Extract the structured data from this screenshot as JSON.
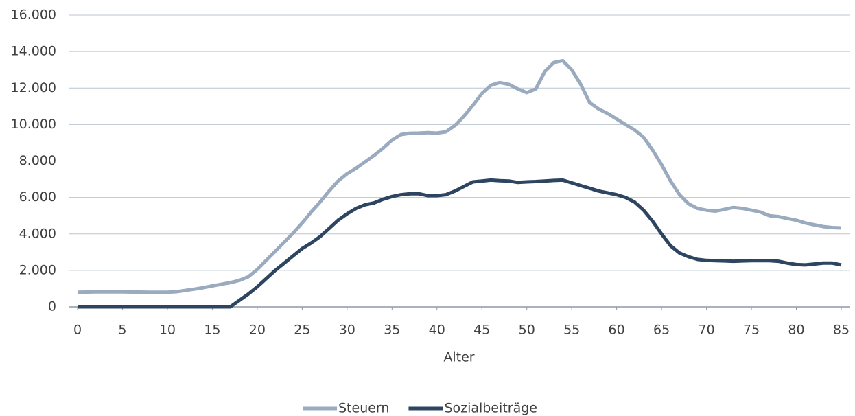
{
  "chart_data": {
    "type": "line",
    "x_label": "Alter",
    "x": [
      0,
      1,
      2,
      3,
      4,
      5,
      6,
      7,
      8,
      9,
      10,
      11,
      12,
      13,
      14,
      15,
      16,
      17,
      18,
      19,
      20,
      21,
      22,
      23,
      24,
      25,
      26,
      27,
      28,
      29,
      30,
      31,
      32,
      33,
      34,
      35,
      36,
      37,
      38,
      39,
      40,
      41,
      42,
      43,
      44,
      45,
      46,
      47,
      48,
      49,
      50,
      51,
      52,
      53,
      54,
      55,
      56,
      57,
      58,
      59,
      60,
      61,
      62,
      63,
      64,
      65,
      66,
      67,
      68,
      69,
      70,
      71,
      72,
      73,
      74,
      75,
      76,
      77,
      78,
      79,
      80,
      81,
      82,
      83,
      84,
      85
    ],
    "series": [
      {
        "name": "Steuern",
        "color": "#9aabbf",
        "values": [
          800,
          810,
          820,
          820,
          820,
          820,
          810,
          810,
          800,
          800,
          800,
          830,
          900,
          970,
          1050,
          1150,
          1240,
          1330,
          1450,
          1650,
          2050,
          2550,
          3050,
          3550,
          4050,
          4600,
          5200,
          5750,
          6350,
          6900,
          7300,
          7600,
          7950,
          8300,
          8700,
          9150,
          9450,
          9520,
          9530,
          9550,
          9530,
          9600,
          9950,
          10450,
          11050,
          11700,
          12150,
          12300,
          12200,
          11950,
          11750,
          11950,
          12900,
          13400,
          13500,
          13000,
          12200,
          11200,
          10850,
          10600,
          10300,
          10000,
          9700,
          9300,
          8600,
          7800,
          6900,
          6150,
          5650,
          5400,
          5300,
          5250,
          5350,
          5450,
          5400,
          5300,
          5200,
          5000,
          4950,
          4850,
          4750,
          4600,
          4500,
          4400,
          4350,
          4330
        ]
      },
      {
        "name": "Sozialbeiträge",
        "color": "#2e4561",
        "values": [
          0,
          0,
          0,
          0,
          0,
          0,
          0,
          0,
          0,
          0,
          0,
          0,
          0,
          0,
          0,
          0,
          0,
          0,
          350,
          700,
          1100,
          1550,
          2000,
          2400,
          2800,
          3200,
          3500,
          3850,
          4300,
          4750,
          5100,
          5400,
          5600,
          5700,
          5900,
          6050,
          6150,
          6200,
          6200,
          6100,
          6100,
          6150,
          6350,
          6600,
          6850,
          6900,
          6950,
          6920,
          6900,
          6820,
          6850,
          6870,
          6900,
          6930,
          6950,
          6800,
          6650,
          6500,
          6350,
          6250,
          6150,
          6000,
          5750,
          5300,
          4700,
          4000,
          3350,
          2950,
          2750,
          2600,
          2550,
          2530,
          2520,
          2500,
          2520,
          2530,
          2530,
          2530,
          2500,
          2400,
          2320,
          2300,
          2350,
          2400,
          2400,
          2300
        ]
      }
    ],
    "xlim": [
      0,
      85
    ],
    "xticks": [
      0,
      5,
      10,
      15,
      20,
      25,
      30,
      35,
      40,
      45,
      50,
      55,
      60,
      65,
      70,
      75,
      80,
      85
    ],
    "ylim": [
      0,
      16000
    ],
    "yticks": [
      0,
      {
        "value": 2000,
        "label": "2.000"
      },
      {
        "value": 4000,
        "label": "4.000"
      },
      {
        "value": 6000,
        "label": "6.000"
      },
      {
        "value": 8000,
        "label": "8.000"
      },
      {
        "value": 10000,
        "label": "10.000"
      },
      {
        "value": 12000,
        "label": "12.000"
      },
      {
        "value": 14000,
        "label": "14.000"
      },
      {
        "value": 16000,
        "label": "16.000"
      }
    ],
    "grid": true,
    "legend": "bottom"
  }
}
